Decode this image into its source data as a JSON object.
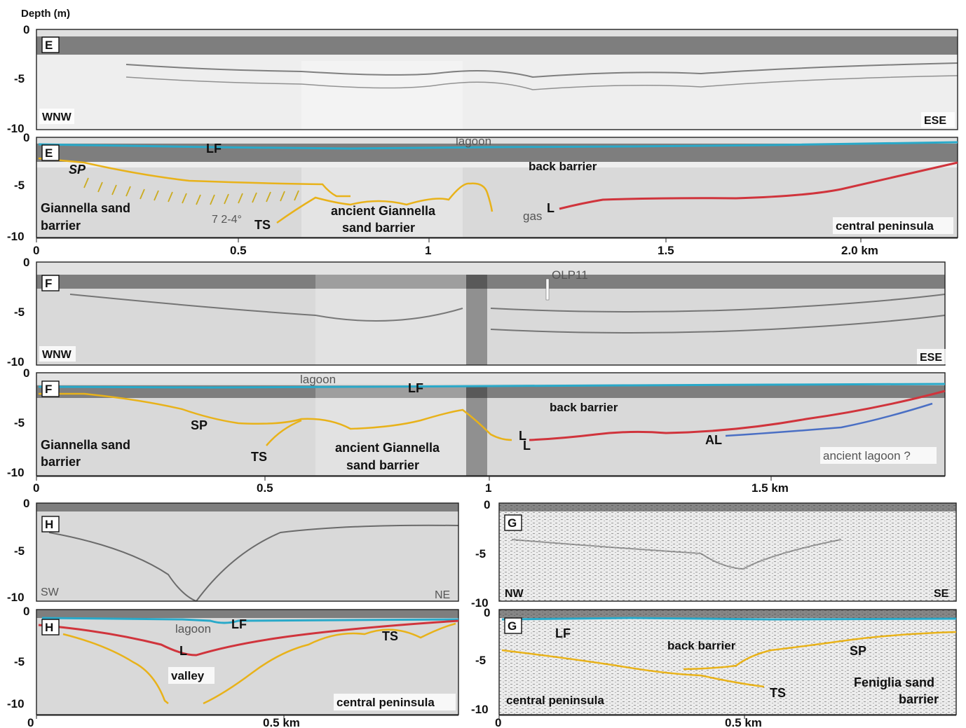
{
  "figure": {
    "depth_axis_title": "Depth (m)",
    "panels": [
      {
        "id": "E-raw",
        "letter": "E",
        "left_dir": "WNW",
        "right_dir": "ESE",
        "depth_ticks": [
          "0",
          "-5",
          "-10"
        ]
      },
      {
        "id": "E-int",
        "letter": "E",
        "depth_ticks": [
          "0",
          "-5",
          "-10"
        ],
        "distance_ticks": [
          "0",
          "0.5",
          "1",
          "1.5",
          "2.0 km"
        ],
        "labels": [
          "lagoon",
          "LF",
          "SP",
          "back barrier",
          "Giannella sand",
          "barrier",
          "7 2-4°",
          "TS",
          "ancient Giannella",
          "sand barrier",
          "gas",
          "L",
          "central peninsula"
        ]
      },
      {
        "id": "F-raw",
        "letter": "F",
        "left_dir": "WNW",
        "right_dir": "ESE",
        "depth_ticks": [
          "0",
          "-5",
          "-10"
        ],
        "core_label": "OLP11"
      },
      {
        "id": "F-int",
        "letter": "F",
        "depth_ticks": [
          "0",
          "-5",
          "-10"
        ],
        "distance_ticks": [
          "0",
          "0.5",
          "1",
          "1.5 km"
        ],
        "labels": [
          "lagoon",
          "LF",
          "back barrier",
          "Giannella sand",
          "barrier",
          "SP",
          "TS",
          "ancient Giannella",
          "sand barrier",
          "L",
          "L",
          "AL",
          "ancient lagoon ?"
        ]
      },
      {
        "id": "H-raw",
        "letter": "H",
        "left_dir": "SW",
        "right_dir": "NE",
        "depth_ticks": [
          "0",
          "-5",
          "-10"
        ]
      },
      {
        "id": "G-raw",
        "letter": "G",
        "left_dir": "NW",
        "right_dir": "SE",
        "depth_ticks": [
          "0",
          "-5",
          "-10"
        ]
      },
      {
        "id": "H-int",
        "letter": "H",
        "depth_ticks": [
          "0",
          "-5",
          "-10"
        ],
        "distance_ticks": [
          "0",
          "0.5 km"
        ],
        "labels": [
          "lagoon",
          "LF",
          "L",
          "TS",
          "valley",
          "central peninsula"
        ]
      },
      {
        "id": "G-int",
        "letter": "G",
        "depth_ticks": [
          "0",
          "-5",
          "-10"
        ],
        "distance_ticks": [
          "0",
          "0.5 km"
        ],
        "labels": [
          "LF",
          "back barrier",
          "SP",
          "TS",
          "Feniglia sand",
          "barrier",
          "central peninsula"
        ]
      }
    ],
    "colors": {
      "lagoon_floor": "#29a9c9",
      "sand_barrier": "#e8b21a",
      "lagoon_base": "#d0343c",
      "ancient_lagoon": "#4a6fc4",
      "dip_lines": "#c9a400"
    }
  }
}
